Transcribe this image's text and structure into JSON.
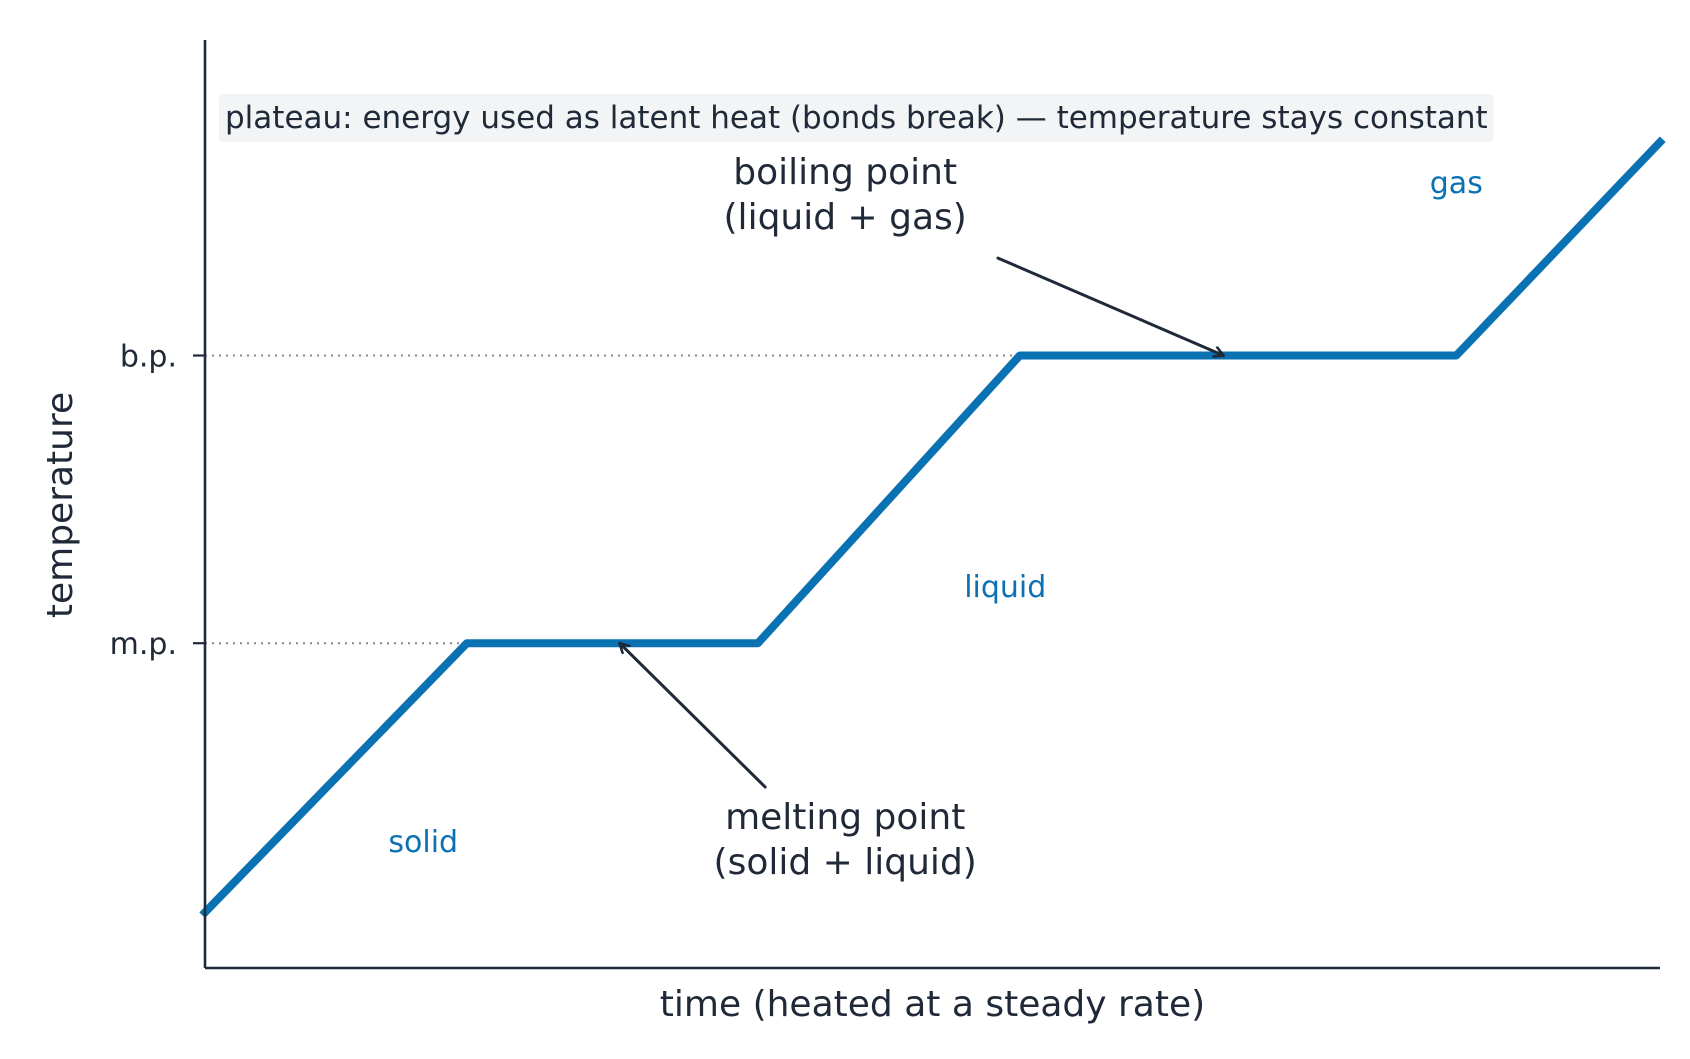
{
  "colors": {
    "curve": "#0a72b3",
    "axis": "#1f2937",
    "reference_line": "#8a8a8a",
    "note_background": "#f3f4f6"
  },
  "chart_data": {
    "type": "line",
    "title": "",
    "xlabel": "time (heated at a steady rate)",
    "ylabel": "temperature",
    "xlim": [
      0,
      10
    ],
    "ylim": [
      0,
      10
    ],
    "grid": false,
    "x_tick_labels": [],
    "y_ticks": [
      {
        "value": 3.5,
        "label": "m.p."
      },
      {
        "value": 6.6,
        "label": "b.p."
      }
    ],
    "series": [
      {
        "x": [
          0,
          1.8,
          3.8,
          5.6,
          8.6,
          10
        ],
        "y": [
          0.6,
          3.5,
          3.5,
          6.6,
          6.6,
          8.9
        ]
      }
    ],
    "reference_lines": [
      {
        "y": 3.5,
        "x_end": 1.8
      },
      {
        "y": 6.6,
        "x_end": 5.6
      }
    ],
    "phase_labels": [
      {
        "text": "solid",
        "x": 1.5,
        "y": 1.25
      },
      {
        "text": "liquid",
        "x": 5.5,
        "y": 4.0
      },
      {
        "text": "gas",
        "x": 8.6,
        "y": 8.35
      }
    ],
    "annotations": [
      {
        "lines": [
          "melting point",
          "(solid + liquid)"
        ],
        "text_x": 4.4,
        "text_y": 1.5,
        "target_x": 2.85,
        "target_y": 3.5,
        "arrow_from_x": 3.85,
        "arrow_from_y": 1.95
      },
      {
        "lines": [
          "boiling point",
          "(liquid + gas)"
        ],
        "text_x": 4.4,
        "text_y": 8.45,
        "target_x": 7.0,
        "target_y": 6.6,
        "arrow_from_x": 5.45,
        "arrow_from_y": 7.65
      }
    ],
    "note": "plateau: energy used as latent heat (bonds break) — temperature stays constant"
  }
}
